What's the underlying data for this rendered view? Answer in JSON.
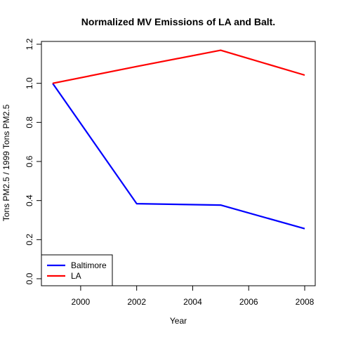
{
  "chart_data": {
    "type": "line",
    "title": "Normalized MV Emissions of LA and Balt.",
    "xlabel": "Year",
    "ylabel": "Tons PM2.5 / 1999 Tons PM2.5",
    "x": [
      1999,
      2002,
      2005,
      2008
    ],
    "xlim": [
      1999,
      2008
    ],
    "ylim": [
      0,
      1.2
    ],
    "x_ticks": [
      "2000",
      "2002",
      "2004",
      "2006",
      "2008"
    ],
    "y_ticks": [
      "0.0",
      "0.2",
      "0.4",
      "0.6",
      "0.8",
      "1.0",
      "1.2"
    ],
    "series": [
      {
        "name": "Baltimore",
        "color": "#0000ff",
        "values": [
          1.0,
          0.384,
          0.377,
          0.256
        ]
      },
      {
        "name": "LA",
        "color": "#ff0000",
        "values": [
          1.0,
          1.086,
          1.169,
          1.042
        ]
      }
    ],
    "grid": false,
    "legend": "bottom-left"
  }
}
